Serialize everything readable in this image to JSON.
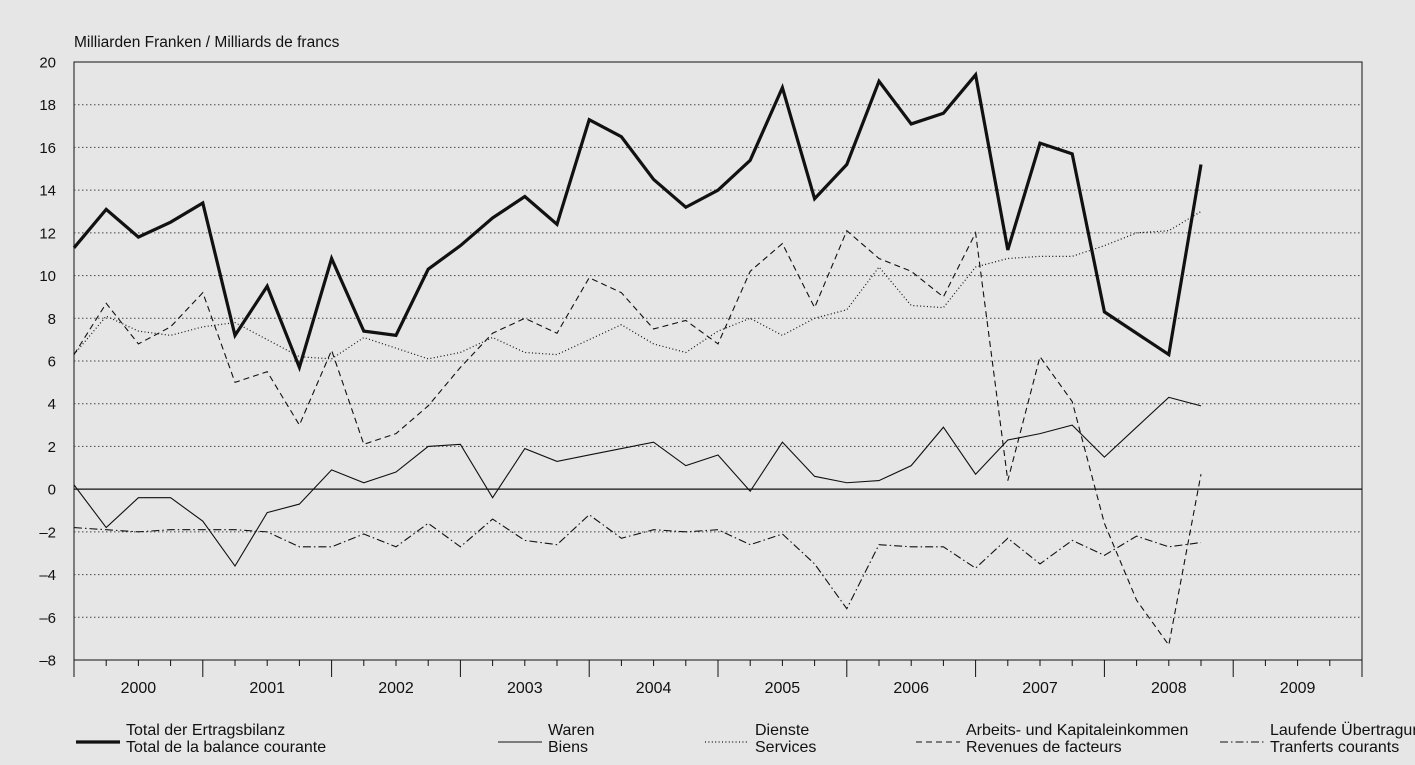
{
  "chart_data": {
    "type": "line",
    "title": "",
    "ylabel": "Milliarden Franken / Milliards de francs",
    "xlabel": "",
    "ylim": [
      -8,
      20
    ],
    "yticks": [
      -8,
      -6,
      -4,
      -2,
      0,
      2,
      4,
      6,
      8,
      10,
      12,
      14,
      16,
      18,
      20
    ],
    "ytick_labels": [
      "–8",
      "–6",
      "–4",
      "–2",
      "0",
      "2",
      "4",
      "6",
      "8",
      "10",
      "12",
      "14",
      "16",
      "18",
      "20"
    ],
    "years": [
      "2000",
      "2001",
      "2002",
      "2003",
      "2004",
      "2005",
      "2006",
      "2007",
      "2008",
      "2009"
    ],
    "x": [
      "2000-Q1",
      "2000-Q2",
      "2000-Q3",
      "2000-Q4",
      "2001-Q1",
      "2001-Q2",
      "2001-Q3",
      "2001-Q4",
      "2002-Q1",
      "2002-Q2",
      "2002-Q3",
      "2002-Q4",
      "2003-Q1",
      "2003-Q2",
      "2003-Q3",
      "2003-Q4",
      "2004-Q1",
      "2004-Q2",
      "2004-Q3",
      "2004-Q4",
      "2005-Q1",
      "2005-Q2",
      "2005-Q3",
      "2005-Q4",
      "2006-Q1",
      "2006-Q2",
      "2006-Q3",
      "2006-Q4",
      "2007-Q1",
      "2007-Q2",
      "2007-Q3",
      "2007-Q4",
      "2008-Q1",
      "2008-Q2",
      "2008-Q3",
      "2008-Q4",
      "2009-Q1"
    ],
    "grid": true,
    "legend_placement": "bottom",
    "series": [
      {
        "name": "Total der Ertragsbilanz",
        "name2": "Total de la balance courante",
        "style": "thick",
        "values": [
          11.3,
          13.1,
          11.8,
          12.5,
          13.4,
          7.2,
          9.5,
          5.7,
          10.8,
          7.4,
          7.2,
          10.3,
          11.4,
          12.7,
          13.7,
          12.4,
          17.3,
          16.5,
          14.5,
          13.2,
          14.0,
          15.4,
          18.8,
          13.6,
          15.2,
          19.1,
          17.1,
          17.6,
          19.4,
          11.2,
          16.2,
          15.7,
          8.3,
          7.3,
          6.3,
          15.2,
          null
        ]
      },
      {
        "name": "Waren",
        "name2": "Biens",
        "style": "thin",
        "values": [
          0.2,
          -1.8,
          -0.4,
          -0.4,
          -1.5,
          -3.6,
          -1.1,
          -0.7,
          0.9,
          0.3,
          0.8,
          2.0,
          2.1,
          -0.4,
          1.9,
          1.3,
          1.6,
          1.9,
          2.2,
          1.1,
          1.6,
          -0.1,
          2.2,
          0.6,
          0.3,
          0.4,
          1.1,
          2.9,
          0.7,
          2.3,
          2.6,
          3.0,
          1.5,
          2.9,
          4.3,
          3.9,
          null
        ]
      },
      {
        "name": "Dienste",
        "name2": "Services",
        "style": "dotted",
        "values": [
          6.3,
          8.1,
          7.4,
          7.2,
          7.6,
          7.8,
          7.0,
          6.2,
          6.1,
          7.1,
          6.6,
          6.1,
          6.4,
          7.1,
          6.4,
          6.3,
          7.0,
          7.7,
          6.8,
          6.4,
          7.4,
          8.0,
          7.2,
          8.0,
          8.4,
          10.4,
          8.6,
          8.5,
          10.4,
          10.8,
          10.9,
          10.9,
          11.4,
          12.0,
          12.1,
          13.0,
          null
        ]
      },
      {
        "name": "Arbeits- und Kapitaleinkommen",
        "name2": "Revenues de facteurs",
        "style": "dashed",
        "values": [
          6.3,
          8.7,
          6.8,
          7.6,
          9.2,
          5.0,
          5.5,
          3.0,
          6.5,
          2.1,
          2.6,
          3.9,
          5.7,
          7.3,
          8.0,
          7.3,
          9.9,
          9.2,
          7.5,
          7.9,
          6.8,
          10.2,
          11.5,
          8.5,
          12.1,
          10.8,
          10.2,
          9.0,
          12.0,
          0.4,
          6.2,
          4.1,
          -1.6,
          -5.2,
          -7.3,
          0.7,
          null
        ]
      },
      {
        "name": "Laufende Übertragungen",
        "name2": "Tranferts courants",
        "style": "dashdot",
        "values": [
          -1.8,
          -1.9,
          -2.0,
          -1.9,
          -1.9,
          -1.9,
          -2.0,
          -2.7,
          -2.7,
          -2.1,
          -2.7,
          -1.6,
          -2.7,
          -1.4,
          -2.4,
          -2.6,
          -1.2,
          -2.3,
          -1.9,
          -2.0,
          -1.9,
          -2.6,
          -2.1,
          -3.5,
          -5.6,
          -2.6,
          -2.7,
          -2.7,
          -3.7,
          -2.3,
          -3.5,
          -2.4,
          -3.1,
          -2.2,
          -2.7,
          -2.5,
          null
        ]
      }
    ]
  }
}
